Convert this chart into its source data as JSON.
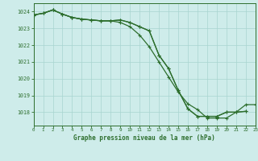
{
  "title": "Graphe pression niveau de la mer (hPa)",
  "bg_color": "#ceecea",
  "grid_color": "#a8d5d0",
  "line_color": "#2d6e2d",
  "xlim": [
    0,
    23
  ],
  "ylim": [
    1017.2,
    1024.5
  ],
  "yticks": [
    1018,
    1019,
    1020,
    1021,
    1022,
    1023,
    1024
  ],
  "xticks": [
    0,
    1,
    2,
    3,
    4,
    5,
    6,
    7,
    8,
    9,
    10,
    11,
    12,
    13,
    14,
    15,
    16,
    17,
    18,
    19,
    20,
    21,
    22,
    23
  ],
  "line1_x": [
    0,
    1,
    2,
    3,
    4,
    5,
    6,
    7,
    8,
    9,
    10,
    11,
    12,
    13,
    14,
    15,
    16,
    17,
    18,
    19,
    20,
    21,
    22
  ],
  "line1_y": [
    1023.8,
    1023.9,
    1024.1,
    1023.85,
    1023.65,
    1023.55,
    1023.5,
    1023.45,
    1023.45,
    1023.5,
    1023.35,
    1023.1,
    1022.85,
    1021.4,
    1020.6,
    1019.3,
    1018.2,
    1017.75,
    1017.75,
    1017.75,
    1018.0,
    1018.0,
    1018.05
  ],
  "line2_x": [
    0,
    1,
    2,
    3,
    4,
    5,
    6,
    7,
    8,
    9,
    10,
    11,
    12,
    13,
    14,
    15,
    16,
    17,
    18,
    19,
    20,
    21,
    22
  ],
  "line2_y": [
    1023.8,
    1023.9,
    1024.1,
    1023.85,
    1023.65,
    1023.55,
    1023.5,
    1023.45,
    1023.45,
    1023.5,
    1023.35,
    1023.1,
    1022.85,
    1021.4,
    1020.6,
    1019.3,
    1018.2,
    1017.75,
    1017.75,
    1017.75,
    1018.0,
    1018.0,
    1018.05
  ],
  "line3_x": [
    0,
    1,
    2,
    3,
    4,
    5,
    6,
    7,
    8,
    9,
    10,
    11,
    12,
    13,
    14,
    15,
    16,
    17,
    18,
    19,
    20,
    21,
    22,
    23
  ],
  "line3_y": [
    1023.8,
    1023.9,
    1024.1,
    1023.85,
    1023.65,
    1023.55,
    1023.5,
    1023.45,
    1023.45,
    1023.35,
    1023.1,
    1022.6,
    1021.9,
    1021.0,
    1020.1,
    1019.2,
    1018.5,
    1018.15,
    1017.65,
    1017.65,
    1017.65,
    1018.0,
    1018.45,
    1018.45
  ]
}
